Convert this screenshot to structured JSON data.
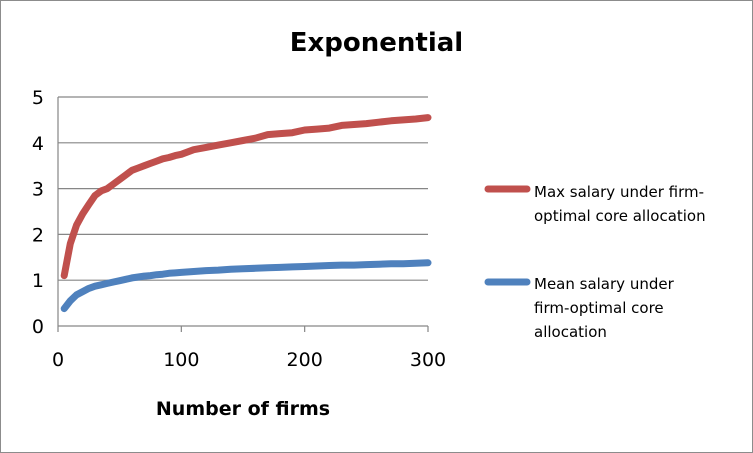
{
  "chart_data": {
    "type": "line",
    "title": "Exponential",
    "xlabel": "Number of firms",
    "ylabel": "",
    "xlim": [
      0,
      300
    ],
    "ylim": [
      0,
      5
    ],
    "x_ticks": [
      "0",
      "100",
      "200",
      "300"
    ],
    "y_ticks": [
      "0",
      "1",
      "2",
      "3",
      "4",
      "5"
    ],
    "grid": "horizontal",
    "legend_position": "right",
    "x": [
      5,
      10,
      15,
      20,
      25,
      30,
      35,
      40,
      45,
      50,
      55,
      60,
      65,
      70,
      75,
      80,
      85,
      90,
      95,
      100,
      110,
      120,
      130,
      140,
      150,
      160,
      170,
      180,
      190,
      200,
      210,
      220,
      230,
      240,
      250,
      260,
      270,
      280,
      290,
      300
    ],
    "series": [
      {
        "name": "Max salary under firm-optimal core allocation",
        "color": "#c0504d",
        "values": [
          1.1,
          1.8,
          2.2,
          2.45,
          2.65,
          2.85,
          2.95,
          3.0,
          3.1,
          3.2,
          3.3,
          3.4,
          3.45,
          3.5,
          3.55,
          3.6,
          3.65,
          3.68,
          3.72,
          3.75,
          3.85,
          3.9,
          3.95,
          4.0,
          4.05,
          4.1,
          4.18,
          4.2,
          4.22,
          4.28,
          4.3,
          4.32,
          4.38,
          4.4,
          4.42,
          4.45,
          4.48,
          4.5,
          4.52,
          4.55
        ]
      },
      {
        "name": "Mean salary under firm-optimal core allocation",
        "color": "#4f81bd",
        "values": [
          0.38,
          0.55,
          0.68,
          0.75,
          0.82,
          0.87,
          0.9,
          0.93,
          0.96,
          0.99,
          1.02,
          1.05,
          1.07,
          1.09,
          1.1,
          1.12,
          1.13,
          1.15,
          1.16,
          1.17,
          1.19,
          1.21,
          1.22,
          1.24,
          1.25,
          1.26,
          1.27,
          1.28,
          1.29,
          1.3,
          1.31,
          1.32,
          1.33,
          1.33,
          1.34,
          1.35,
          1.36,
          1.36,
          1.37,
          1.38
        ]
      }
    ]
  }
}
